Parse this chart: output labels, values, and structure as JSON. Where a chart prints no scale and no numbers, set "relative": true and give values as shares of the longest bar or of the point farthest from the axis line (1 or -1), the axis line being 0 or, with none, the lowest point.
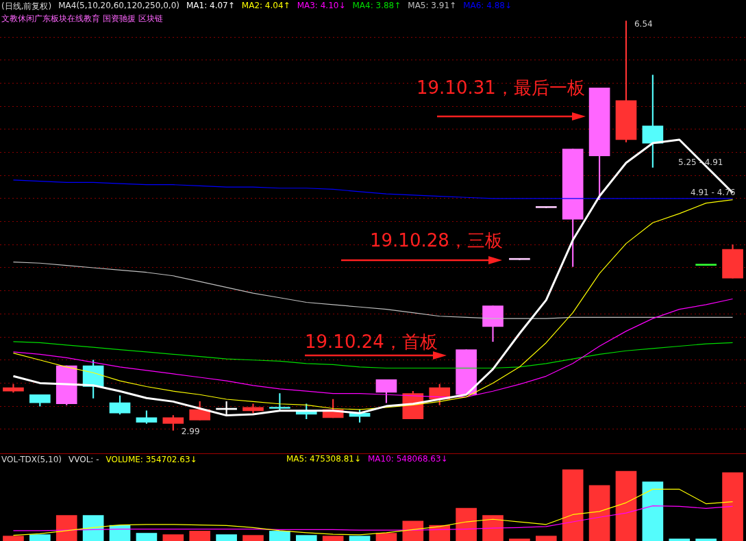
{
  "chart_data": [
    {
      "type": "candlestick",
      "title": "(日线,前复权)",
      "subtitle": "MA4(5,10,20,60,120,250,0,0)",
      "categories": [
        null,
        null,
        null,
        null,
        null,
        null,
        null,
        null,
        null,
        null,
        null,
        null,
        null,
        null,
        null,
        null,
        null,
        null,
        null,
        null,
        null,
        null,
        null,
        null,
        null,
        null,
        null,
        null
      ],
      "ohlc": [
        [
          3.33,
          3.39,
          3.32,
          3.36
        ],
        [
          3.3,
          3.3,
          3.2,
          3.23
        ],
        [
          3.22,
          3.55,
          3.21,
          3.55
        ],
        [
          3.55,
          3.6,
          3.27,
          3.37
        ],
        [
          3.23,
          3.29,
          3.13,
          3.14
        ],
        [
          3.1,
          3.16,
          3.05,
          3.06
        ],
        [
          3.05,
          3.12,
          2.99,
          3.1
        ],
        [
          3.08,
          3.24,
          3.08,
          3.17
        ],
        [
          3.17,
          3.24,
          3.13,
          3.18
        ],
        [
          3.16,
          3.22,
          3.14,
          3.19
        ],
        [
          3.19,
          3.31,
          3.16,
          3.18
        ],
        [
          3.16,
          3.22,
          3.09,
          3.13
        ],
        [
          3.1,
          3.26,
          3.1,
          3.17
        ],
        [
          3.14,
          3.17,
          3.06,
          3.11
        ],
        [
          3.32,
          3.43,
          3.23,
          3.43
        ],
        [
          3.09,
          3.33,
          3.09,
          3.31
        ],
        [
          3.26,
          3.39,
          3.21,
          3.36
        ],
        [
          3.3,
          3.69,
          3.3,
          3.69
        ],
        [
          3.89,
          4.07,
          3.76,
          4.07
        ],
        [
          4.47,
          4.47,
          4.47,
          4.47
        ],
        [
          4.92,
          4.92,
          4.92,
          4.92
        ],
        [
          4.82,
          5.43,
          4.41,
          5.43
        ],
        [
          5.37,
          5.96,
          4.99,
          5.96
        ],
        [
          5.51,
          6.54,
          5.49,
          5.85
        ],
        [
          5.63,
          6.07,
          5.27,
          5.48
        ],
        null,
        [
          4.42,
          4.42,
          4.42,
          4.42
        ],
        [
          4.31,
          4.6,
          4.31,
          4.56
        ]
      ],
      "colors": [
        "#ff3232",
        "#54fcfc",
        "#ff66ff",
        "#54fcfc",
        "#54fcfc",
        "#54fcfc",
        "#ff3232",
        "#ff3232",
        "#ffffff",
        "#ff3232",
        "#54fcfc",
        "#54fcfc",
        "#ff3232",
        "#54fcfc",
        "#ff66ff",
        "#ff3232",
        "#ff3232",
        "#ff66ff",
        "#ff66ff",
        "#ffccff",
        "#ffccff",
        "#ff66ff",
        "#ff66ff",
        "#ff3232",
        "#54fcfc",
        "#54fcfc",
        "#33ff33",
        "#ff3232"
      ],
      "series": [
        {
          "name": "MA1: 4.07↑",
          "type": "line",
          "color": "#ffffff",
          "values": [
            3.46,
            3.4,
            3.39,
            3.38,
            3.33,
            3.27,
            3.24,
            3.18,
            3.12,
            3.13,
            3.16,
            3.16,
            3.16,
            3.14,
            3.2,
            3.22,
            3.26,
            3.3,
            3.52,
            3.83,
            4.12,
            4.64,
            5.02,
            5.31,
            5.48,
            5.51,
            5.28,
            5.05
          ]
        },
        {
          "name": "MA2: 4.04↑",
          "type": "line",
          "color": "#ffff00",
          "values": [
            3.66,
            3.6,
            3.54,
            3.49,
            3.42,
            3.37,
            3.33,
            3.3,
            3.26,
            3.24,
            3.22,
            3.21,
            3.18,
            3.17,
            3.19,
            3.21,
            3.24,
            3.28,
            3.4,
            3.54,
            3.75,
            4.01,
            4.35,
            4.61,
            4.79,
            4.87,
            4.96,
            4.99
          ]
        },
        {
          "name": "MA3: 4.10↓",
          "type": "line",
          "color": "#ff00ff",
          "values": [
            3.67,
            3.65,
            3.62,
            3.58,
            3.54,
            3.51,
            3.48,
            3.45,
            3.42,
            3.38,
            3.35,
            3.33,
            3.31,
            3.31,
            3.3,
            3.29,
            3.28,
            3.28,
            3.33,
            3.39,
            3.46,
            3.57,
            3.72,
            3.85,
            3.96,
            4.04,
            4.08,
            4.13
          ]
        },
        {
          "name": "MA4: 3.88↑",
          "type": "line",
          "color": "#00dd00",
          "values": [
            3.76,
            3.75,
            3.73,
            3.71,
            3.69,
            3.67,
            3.65,
            3.63,
            3.61,
            3.6,
            3.59,
            3.57,
            3.56,
            3.54,
            3.53,
            3.53,
            3.53,
            3.53,
            3.53,
            3.54,
            3.57,
            3.61,
            3.65,
            3.68,
            3.7,
            3.72,
            3.74,
            3.75
          ]
        },
        {
          "name": "MA5: 3.91↑",
          "type": "line",
          "color": "#c0c0c0",
          "values": [
            4.45,
            4.44,
            4.42,
            4.4,
            4.38,
            4.36,
            4.33,
            4.28,
            4.23,
            4.18,
            4.14,
            4.1,
            4.08,
            4.06,
            4.04,
            4.01,
            3.98,
            3.97,
            3.96,
            3.96,
            3.96,
            3.97,
            3.97,
            3.97,
            3.97,
            3.97,
            3.97,
            3.97
          ]
        },
        {
          "name": "MA6: 4.88↓",
          "type": "line",
          "color": "#0000ff",
          "values": [
            5.16,
            5.15,
            5.14,
            5.14,
            5.13,
            5.12,
            5.12,
            5.11,
            5.1,
            5.1,
            5.09,
            5.09,
            5.08,
            5.06,
            5.04,
            5.03,
            5.02,
            5.01,
            5.0,
            5.0,
            5.0,
            5.0,
            5.0,
            5.0,
            5.0,
            5.0,
            5.0,
            5.0
          ]
        }
      ],
      "yticks": [
        {
          "value": 3.0,
          "label": null
        },
        {
          "value": 3.2,
          "label": null
        },
        {
          "value": 3.4,
          "label": null
        },
        {
          "value": 3.6,
          "label": null
        },
        {
          "value": 3.8,
          "label": null
        },
        {
          "value": 4.0,
          "label": null
        },
        {
          "value": 4.2,
          "label": null
        },
        {
          "value": 4.4,
          "label": null
        },
        {
          "value": 4.6,
          "label": null
        },
        {
          "value": 4.8,
          "label": null
        },
        {
          "value": 5.0,
          "label": null
        },
        {
          "value": 5.2,
          "label": null
        },
        {
          "value": 5.4,
          "label": null
        },
        {
          "value": 5.6,
          "label": null
        },
        {
          "value": 5.8,
          "label": null
        },
        {
          "value": 6.0,
          "label": null
        },
        {
          "value": 6.2,
          "label": null
        },
        {
          "value": 6.4,
          "label": null
        }
      ],
      "grid": "y",
      "legend": "top left",
      "marker": "none",
      "annotations": [
        "19.10.24，首板",
        "19.10.28，三板",
        "19.10.31，最后一板",
        "6.54",
        "2.99",
        "5.25 - 4.91",
        "4.91 - 4.76",
        "文教休闲广东板块在线教育 国资驰援 区块链"
      ]
    },
    {
      "type": "bar",
      "title": "VOL-TDX(5,10)",
      "subtitle": "VVOL: -",
      "relative": true,
      "categories": [
        null,
        null,
        null,
        null,
        null,
        null,
        null,
        null,
        null,
        null,
        null,
        null,
        null,
        null,
        null,
        null,
        null,
        null,
        null,
        null,
        null,
        null,
        null,
        null,
        null,
        null,
        null,
        null
      ],
      "values": [
        0.07,
        0.09,
        0.36,
        0.36,
        0.22,
        0.11,
        0.09,
        0.14,
        0.09,
        0.08,
        0.14,
        0.08,
        0.07,
        0.07,
        0.11,
        0.28,
        0.22,
        0.46,
        0.36,
        0.03,
        0.07,
        1,
        0.78,
        0.98,
        0.83,
        0.03,
        0.03,
        0.96
      ],
      "colors": [
        "#ff3232",
        "#54fcfc",
        "#ff3232",
        "#54fcfc",
        "#54fcfc",
        "#54fcfc",
        "#ff3232",
        "#ff3232",
        "#54fcfc",
        "#ff3232",
        "#54fcfc",
        "#54fcfc",
        "#ff3232",
        "#54fcfc",
        "#ff3232",
        "#ff3232",
        "#ff3232",
        "#ff3232",
        "#ff3232",
        "#ff3232",
        "#ff3232",
        "#ff3232",
        "#ff3232",
        "#ff3232",
        "#54fcfc",
        "#54fcfc",
        "#54fcfc",
        "#ff3232"
      ],
      "annotations": [
        "VOLUME: 354702.63↓"
      ]
    },
    {
      "type": "line",
      "relative": true,
      "marker": "none",
      "categories": [
        null,
        null,
        null,
        null,
        null,
        null,
        null,
        null,
        null,
        null,
        null,
        null,
        null,
        null,
        null,
        null,
        null,
        null,
        null,
        null,
        null,
        null,
        null,
        null,
        null,
        null,
        null,
        null
      ],
      "series": [
        {
          "name": "MA5: 475308.81↓",
          "color": "#ffff00",
          "values": [
            0.11,
            0.14,
            0.2,
            0.26,
            0.31,
            0.32,
            0.32,
            0.31,
            0.3,
            0.26,
            0.2,
            0.16,
            0.13,
            0.12,
            0.16,
            0.22,
            0.28,
            0.37,
            0.42,
            0.37,
            0.32,
            0.51,
            0.57,
            0.74,
            1,
            1,
            0.72,
            0.76
          ]
        },
        {
          "name": "MA10: 548068.63↓",
          "color": "#ff00ff",
          "values": [
            0.2,
            0.2,
            0.21,
            0.22,
            0.23,
            0.23,
            0.23,
            0.23,
            0.23,
            0.23,
            0.22,
            0.22,
            0.22,
            0.21,
            0.21,
            0.21,
            0.22,
            0.23,
            0.25,
            0.26,
            0.28,
            0.37,
            0.46,
            0.54,
            0.68,
            0.67,
            0.63,
            0.67
          ]
        }
      ]
    }
  ]
}
